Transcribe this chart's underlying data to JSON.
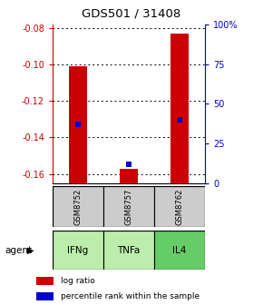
{
  "title": "GDS501 / 31408",
  "samples": [
    "GSM8752",
    "GSM8757",
    "GSM8762"
  ],
  "agents": [
    "IFNg",
    "TNFa",
    "IL4"
  ],
  "log_ratios": [
    -0.101,
    -0.157,
    -0.083
  ],
  "percentile_ranks": [
    37,
    12,
    40
  ],
  "ylim_left": [
    -0.165,
    -0.078
  ],
  "ylim_right": [
    0,
    100
  ],
  "yticks_left": [
    -0.16,
    -0.14,
    -0.12,
    -0.1,
    -0.08
  ],
  "yticks_right": [
    0,
    25,
    50,
    75,
    100
  ],
  "ytick_labels_left": [
    "-0.16",
    "-0.14",
    "-0.12",
    "-0.10",
    "-0.08"
  ],
  "ytick_labels_right": [
    "0",
    "25",
    "50",
    "75",
    "100%"
  ],
  "bar_color": "#cc0000",
  "percentile_color": "#0000cc",
  "sample_box_color": "#cccccc",
  "agent_box_color_light": "#bbeeaa",
  "agent_box_color_dark": "#66cc66",
  "agent_label": "agent",
  "legend_logratio": "log ratio",
  "legend_percentile": "percentile rank within the sample",
  "bar_width": 0.35,
  "fig_width": 2.9,
  "fig_height": 3.36,
  "dpi": 100
}
